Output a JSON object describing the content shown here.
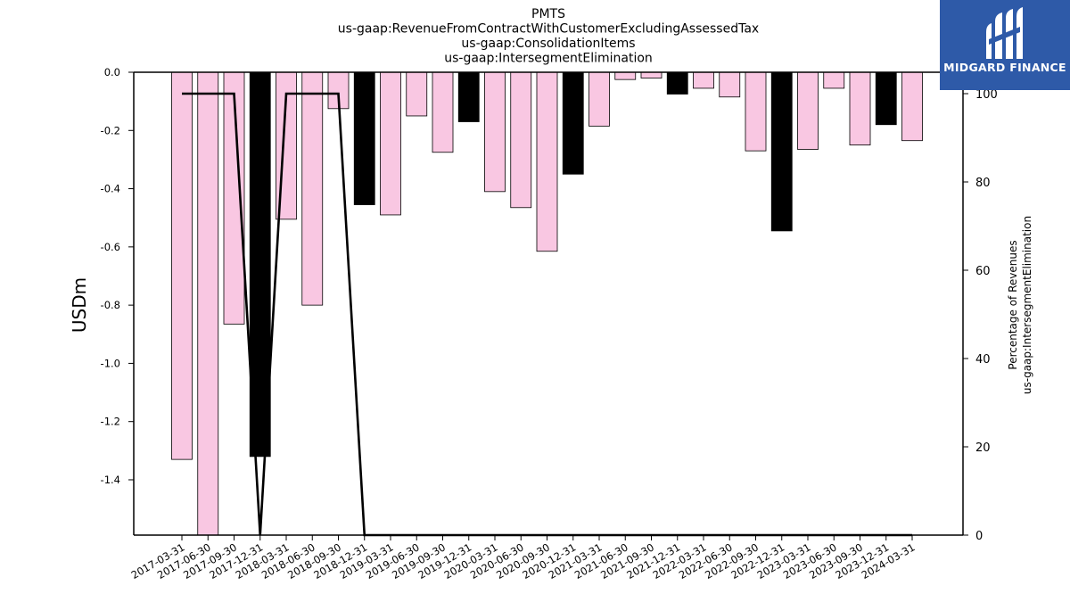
{
  "chart_data": {
    "type": "bar",
    "title": [
      "PMTS",
      "us-gaap:RevenueFromContractWithCustomerExcludingAssessedTax",
      "us-gaap:ConsolidationItems",
      "us-gaap:IntersegmentElimination"
    ],
    "ylabel": "USDm",
    "y2label": [
      "Percentage of Revenues",
      "us-gaap:IntersegmentElimination"
    ],
    "ylim": [
      -1.59,
      0.0
    ],
    "y2lim": [
      0,
      100
    ],
    "yticks": [
      "0.0",
      "-0.2",
      "-0.4",
      "-0.6",
      "-0.8",
      "-1.0",
      "-1.2",
      "-1.4"
    ],
    "y2ticks": [
      "0",
      "20",
      "40",
      "60",
      "80",
      "100"
    ],
    "categories": [
      "2017-03-31",
      "2017-06-30",
      "2017-09-30",
      "2017-12-31",
      "2018-03-31",
      "2018-06-30",
      "2018-09-30",
      "2018-12-31",
      "2019-03-31",
      "2019-06-30",
      "2019-09-30",
      "2019-12-31",
      "2020-03-31",
      "2020-06-30",
      "2020-09-30",
      "2020-12-31",
      "2021-03-31",
      "2021-06-30",
      "2021-09-30",
      "2021-12-31",
      "2022-03-31",
      "2022-06-30",
      "2022-09-30",
      "2022-12-31",
      "2023-03-31",
      "2023-06-30",
      "2023-09-30",
      "2023-12-31",
      "2024-03-31"
    ],
    "values": [
      -1.33,
      -1.59,
      -0.865,
      -1.32,
      -0.505,
      -0.8,
      -0.125,
      -0.455,
      -0.49,
      -0.15,
      -0.275,
      -0.17,
      -0.41,
      -0.465,
      -0.615,
      -0.35,
      -0.185,
      -0.025,
      -0.02,
      -0.075,
      -0.055,
      -0.085,
      -0.27,
      -0.545,
      -0.265,
      -0.055,
      -0.25,
      -0.18,
      -0.235
    ],
    "bar_colors": [
      "#f9c7e2",
      "#f9c7e2",
      "#f9c7e2",
      "#000000",
      "#f9c7e2",
      "#f9c7e2",
      "#f9c7e2",
      "#000000",
      "#f9c7e2",
      "#f9c7e2",
      "#f9c7e2",
      "#000000",
      "#f9c7e2",
      "#f9c7e2",
      "#f9c7e2",
      "#000000",
      "#f9c7e2",
      "#f9c7e2",
      "#f9c7e2",
      "#000000",
      "#f9c7e2",
      "#f9c7e2",
      "#f9c7e2",
      "#000000",
      "#f9c7e2",
      "#f9c7e2",
      "#f9c7e2",
      "#000000",
      "#f9c7e2"
    ],
    "line_values": [
      100,
      100,
      100,
      0,
      100,
      100,
      100,
      0,
      0,
      0,
      0,
      0,
      0,
      0,
      0,
      0,
      0,
      0,
      0,
      0,
      0,
      0,
      0,
      0,
      0,
      0,
      0,
      0,
      0
    ],
    "line_color": "#000000",
    "grid": false,
    "legend": false
  },
  "logo": {
    "text": "MIDGARD FINANCE",
    "background": "#2e5aa8"
  }
}
